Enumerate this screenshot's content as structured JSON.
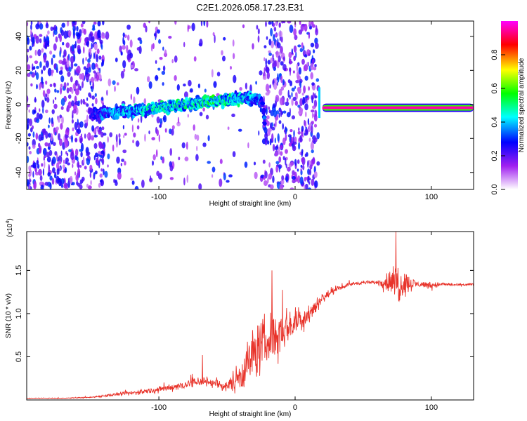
{
  "figure_title": "C2E1.2026.058.17.23.E31",
  "chart_data": [
    {
      "type": "heatmap",
      "title": "",
      "xlabel": "Height of straight line (km)",
      "ylabel": "Frequency (Hz)",
      "xlim": [
        -197,
        131
      ],
      "ylim": [
        -50,
        49
      ],
      "xticks": [
        -100,
        0,
        100
      ],
      "xtick_labels": [
        "-100",
        "0",
        "100"
      ],
      "yticks": [
        -40,
        -20,
        0,
        20,
        40
      ],
      "ytick_labels": [
        "-40",
        "-20",
        "0",
        "20",
        "40"
      ],
      "colorbar": {
        "label": "Normalized spectral amplitude",
        "range": [
          0,
          1
        ],
        "ticks": [
          0,
          0.2,
          0.4,
          0.6,
          0.8
        ],
        "tick_labels": [
          "0.0",
          "0.2",
          "0.4",
          "0.6",
          "0.8"
        ],
        "colors": [
          "#ffffff",
          "#a020f0",
          "#0000ff",
          "#00ffff",
          "#00ff00",
          "#ffff00",
          "#ff0000",
          "#ff00ff"
        ]
      },
      "noise_regions": [
        {
          "x_range": [
            -197,
            -140
          ],
          "density": 0.9
        },
        {
          "x_range": [
            -140,
            -95
          ],
          "density": 0.25
        },
        {
          "x_range": [
            -95,
            -23
          ],
          "density": 0.12
        },
        {
          "x_range": [
            -23,
            15
          ],
          "density": 0.9
        },
        {
          "x_range": [
            15,
            17
          ],
          "density": 0.6
        }
      ],
      "signal_ridge": {
        "x": [
          -150,
          -140,
          -120,
          -100,
          -80,
          -60,
          -45,
          -35,
          -28,
          -24,
          -22
        ],
        "freq": [
          -6,
          -5,
          -4,
          -2,
          0,
          2,
          3,
          4,
          3,
          0,
          -12
        ],
        "amplitude": [
          0.25,
          0.35,
          0.4,
          0.45,
          0.45,
          0.5,
          0.45,
          0.4,
          0.35,
          0.3,
          0.3
        ]
      },
      "carrier_line": {
        "x_range": [
          20,
          131
        ],
        "freq": -2,
        "amplitude": 0.95,
        "onset_x": 17,
        "onset_freq_range": [
          -8,
          10
        ]
      }
    },
    {
      "type": "line",
      "title": "",
      "xlabel": "Height of straight line (km)",
      "ylabel": "SNR (10 * v/v)",
      "scale_label": "(x10",
      "scale_exponent": "4",
      "scale_suffix": ")",
      "xlim": [
        -197,
        131
      ],
      "ylim": [
        0,
        1.95
      ],
      "xticks": [
        -100,
        0,
        100
      ],
      "xtick_labels": [
        "-100",
        "0",
        "100"
      ],
      "yticks": [
        0.5,
        1.0,
        1.5
      ],
      "ytick_labels": [
        "0.5",
        "1.0",
        "1.5"
      ],
      "color": "#e8332a",
      "series": [
        {
          "name": "SNR",
          "x": [
            -197,
            -170,
            -150,
            -140,
            -120,
            -100,
            -80,
            -70,
            -60,
            -50,
            -40,
            -30,
            -20,
            -10,
            0,
            10,
            20,
            30,
            40,
            50,
            60,
            70,
            75,
            80,
            90,
            100,
            110,
            120,
            131
          ],
          "y": [
            0.02,
            0.02,
            0.03,
            0.05,
            0.08,
            0.12,
            0.18,
            0.22,
            0.2,
            0.15,
            0.3,
            0.55,
            0.7,
            0.8,
            0.9,
            1.0,
            1.18,
            1.28,
            1.34,
            1.36,
            1.36,
            1.37,
            1.35,
            1.35,
            1.34,
            1.33,
            1.34,
            1.33,
            1.34
          ],
          "noise": [
            0.005,
            0.005,
            0.01,
            0.02,
            0.04,
            0.05,
            0.08,
            0.1,
            0.08,
            0.08,
            0.3,
            0.45,
            0.45,
            0.35,
            0.25,
            0.2,
            0.08,
            0.04,
            0.03,
            0.03,
            0.03,
            0.2,
            0.4,
            0.2,
            0.05,
            0.06,
            0.03,
            0.02,
            0.02
          ]
        }
      ],
      "annotations": [
        {
          "x": -68,
          "y": 0.52,
          "note": "isolated spike"
        },
        {
          "x": -17,
          "y": 1.5,
          "note": "spike"
        },
        {
          "x": 74,
          "y": 1.95,
          "note": "spike"
        }
      ]
    }
  ]
}
